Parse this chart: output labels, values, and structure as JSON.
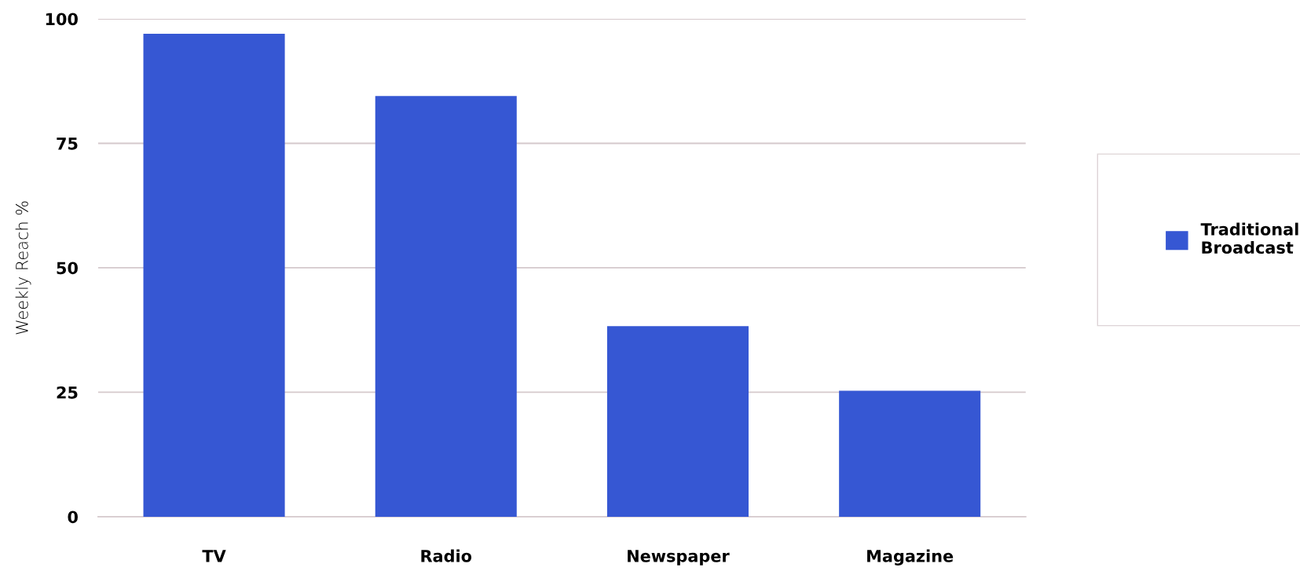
{
  "chart_data": {
    "type": "bar",
    "ylabel": "Weekly Reach %",
    "categories": [
      "TV",
      "Radio",
      "Newspaper",
      "Magazine"
    ],
    "series": [
      {
        "name": "Traditional Broadcast",
        "color": "#3657d3",
        "values": [
          97,
          84.5,
          38.3,
          25.3
        ]
      }
    ],
    "ylim": [
      0,
      100
    ],
    "yticks": [
      0,
      25,
      50,
      75,
      100
    ],
    "grid": "y",
    "legend": "right"
  }
}
